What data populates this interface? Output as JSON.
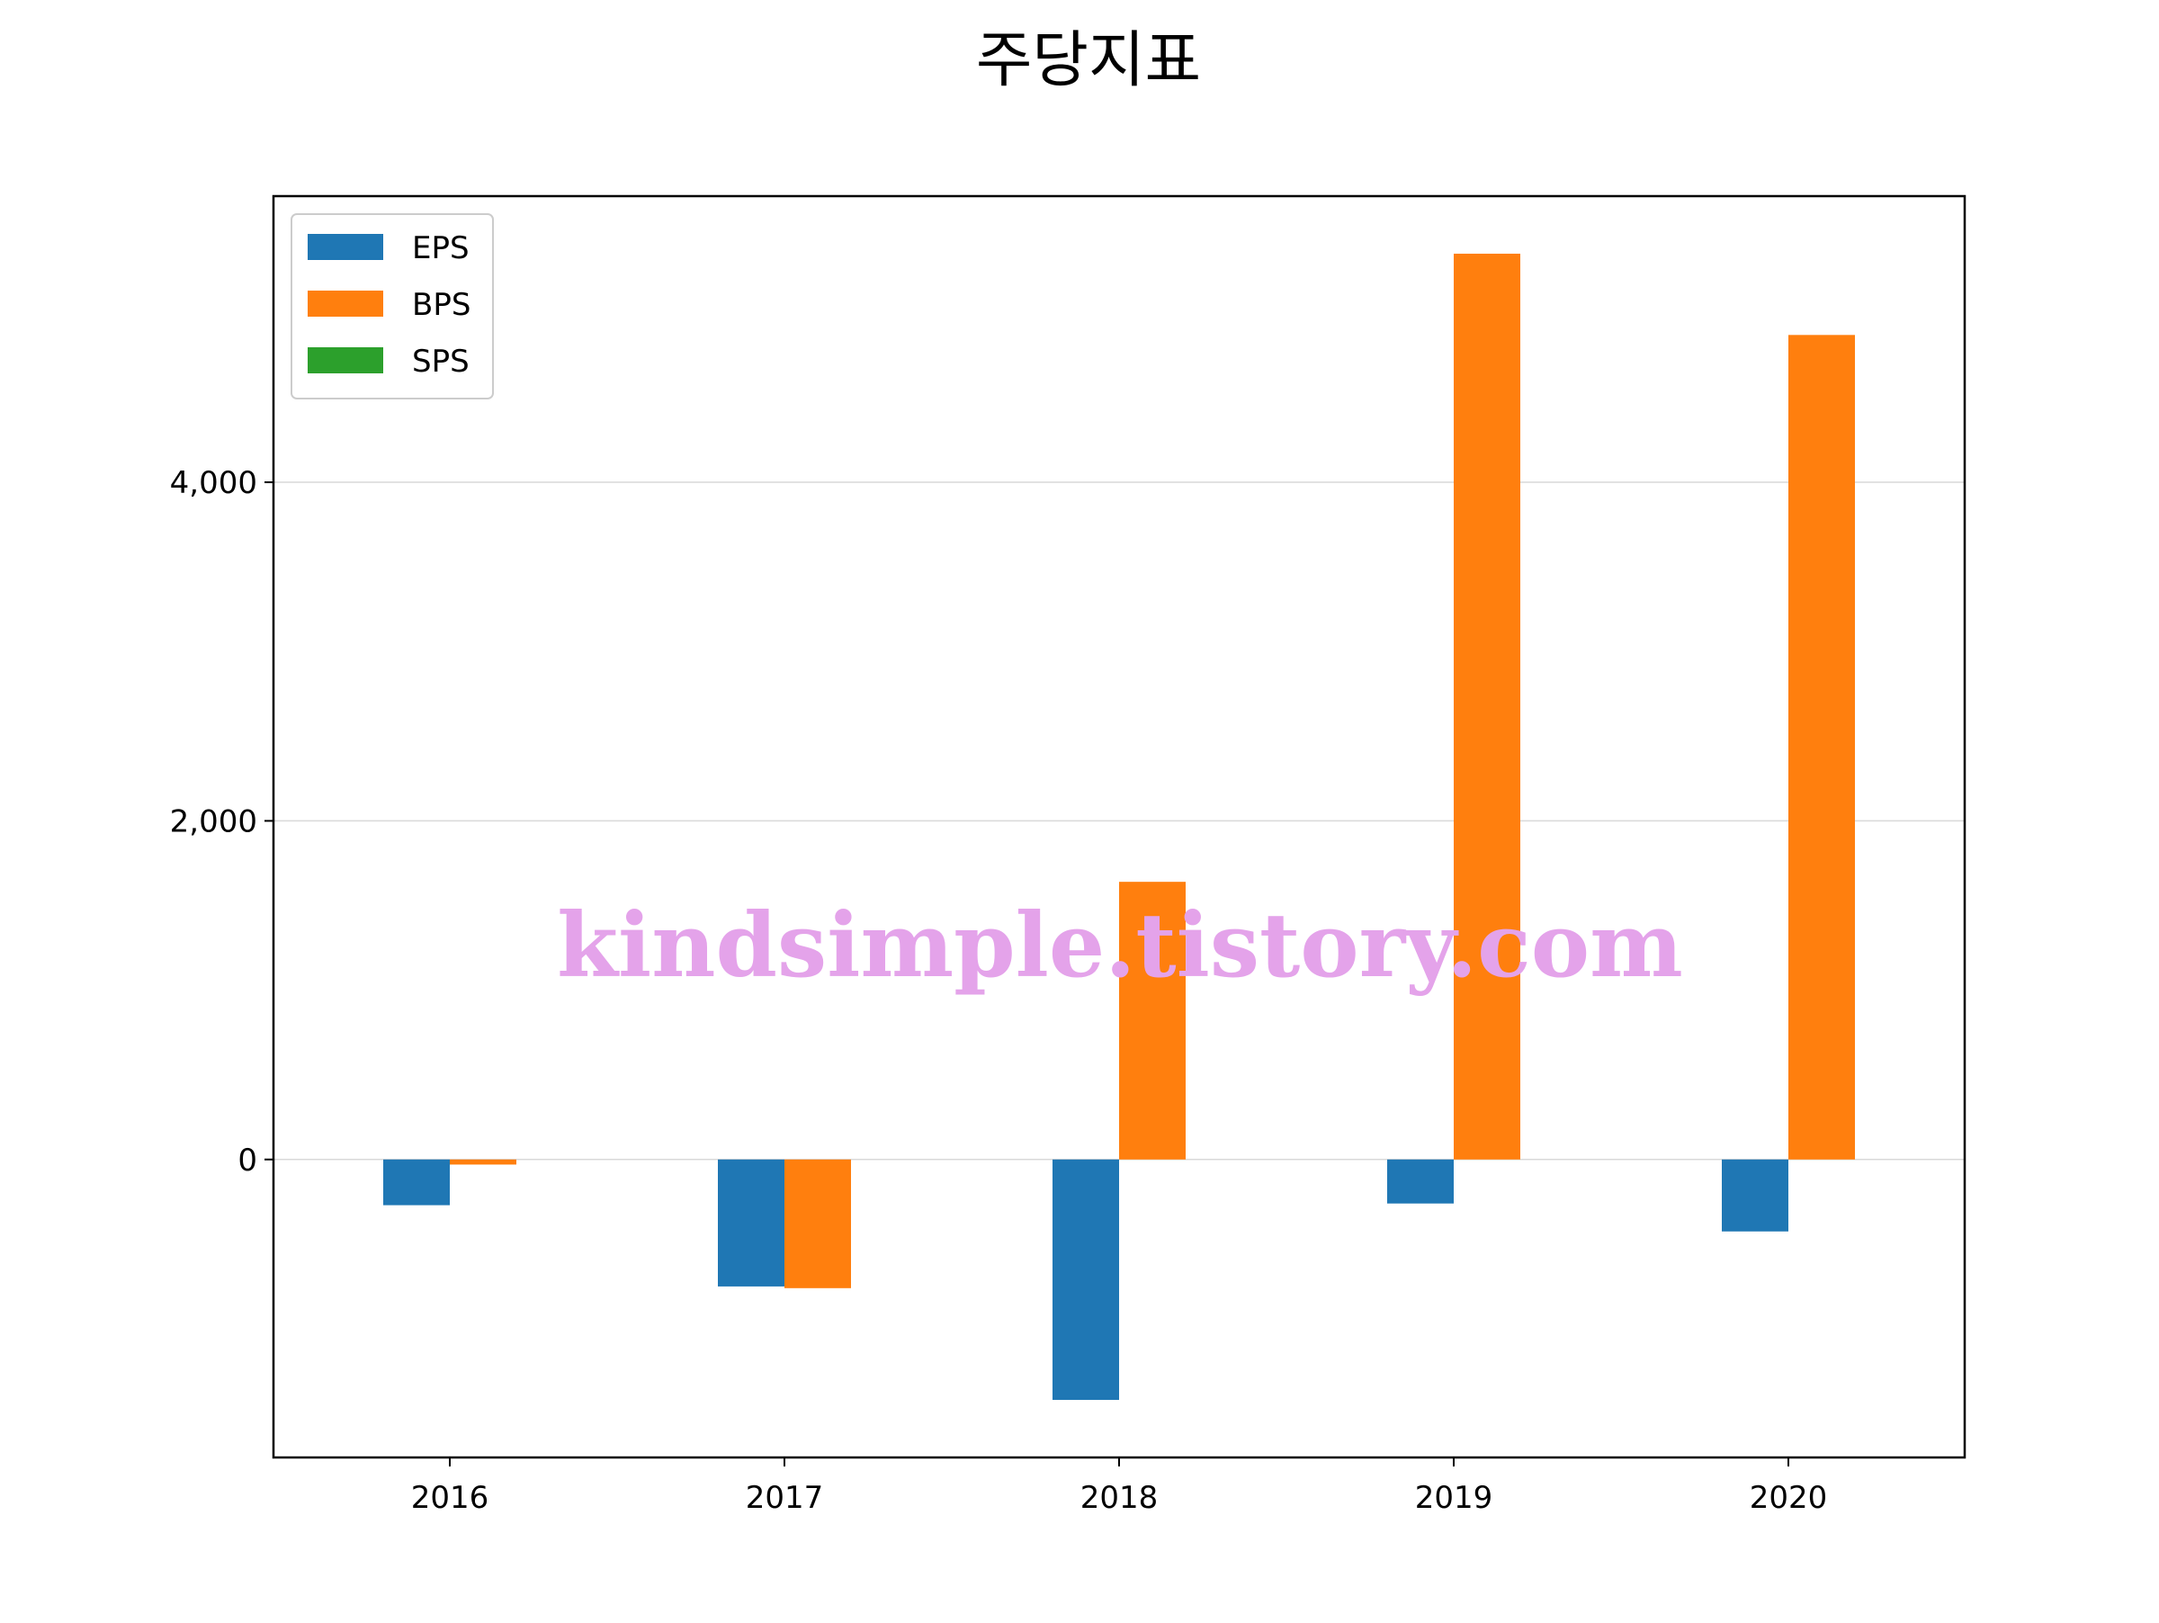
{
  "chart_data": {
    "type": "bar",
    "title": "주당지표",
    "xlabel": "",
    "ylabel": "",
    "categories": [
      "2016",
      "2017",
      "2018",
      "2019",
      "2020"
    ],
    "series": [
      {
        "name": "EPS",
        "color": "#1f77b4",
        "values": [
          -270,
          -750,
          -1420,
          -260,
          -425
        ]
      },
      {
        "name": "BPS",
        "color": "#ff7f0e",
        "values": [
          -30,
          -760,
          1640,
          5350,
          4870
        ]
      },
      {
        "name": "SPS",
        "color": "#2ca02c",
        "values": [
          0,
          0,
          0,
          0,
          0
        ]
      }
    ],
    "ylim": [
      -1760,
      5690
    ],
    "yticks": [
      0,
      2000,
      4000
    ],
    "ytick_labels": [
      "0",
      "2,000",
      "4,000"
    ],
    "grid": "y",
    "legend_position": "top-left",
    "watermark": "kindsimple.tistory.com"
  }
}
